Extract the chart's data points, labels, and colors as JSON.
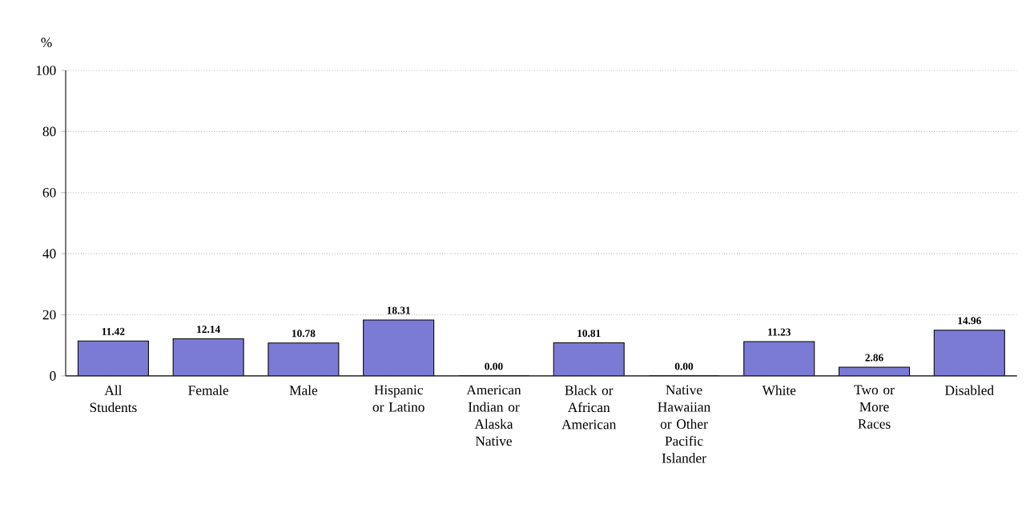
{
  "chart_data": {
    "type": "bar",
    "ylabel": "%",
    "categories": [
      "All Students",
      "Female",
      "Male",
      "Hispanic or Latino",
      "American Indian or Alaska Native",
      "Black or African American",
      "Native Hawaiian or Other Pacific Islander",
      "White",
      "Two or More Races",
      "Disabled"
    ],
    "values": [
      11.42,
      12.14,
      10.78,
      18.31,
      0.0,
      10.81,
      0.0,
      11.23,
      2.86,
      14.96
    ],
    "value_labels": [
      "11.42",
      "12.14",
      "10.78",
      "18.31",
      "0.00",
      "10.81",
      "0.00",
      "11.23",
      "2.86",
      "14.96"
    ],
    "color": "#7b7bd6",
    "ylim": [
      0,
      100
    ],
    "yticks": [
      0,
      20,
      40,
      60,
      80,
      100
    ],
    "grid": "y"
  }
}
